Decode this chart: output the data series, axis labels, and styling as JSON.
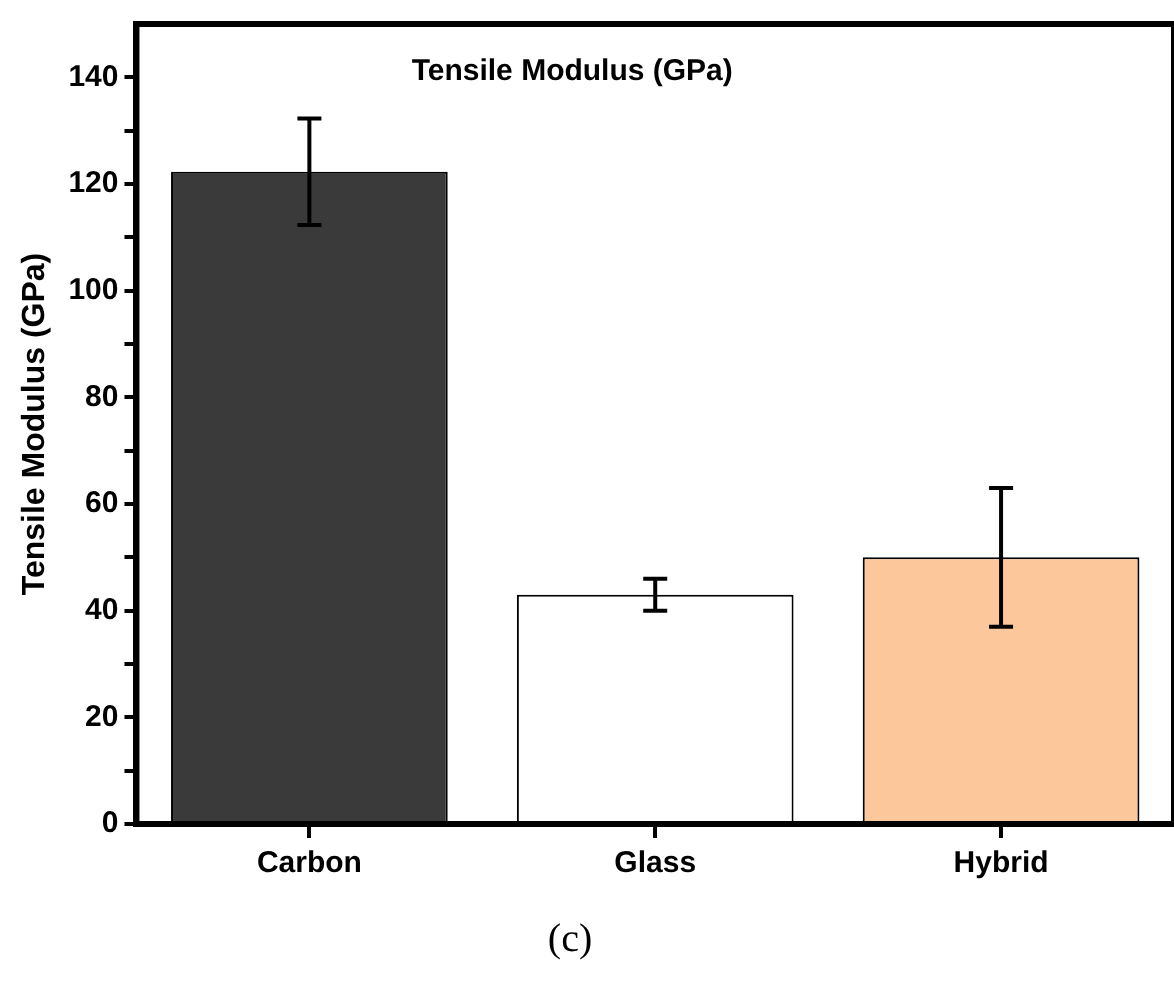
{
  "chart_data": {
    "type": "bar",
    "title": "Tensile Modulus (GPa)",
    "ylabel": "Tensile Modulus (GPa)",
    "categories": [
      "Carbon",
      "Glass",
      "Hybrid"
    ],
    "values": [
      122.3,
      43,
      50
    ],
    "colors": [
      "#3a3a3a",
      "#ffffff",
      "#fcc89b"
    ],
    "errors": [
      10,
      3,
      13
    ],
    "ylim": [
      0,
      150
    ],
    "yticks": [
      0,
      {
        "value": 10,
        "label": null
      },
      20,
      {
        "value": 30,
        "label": null
      },
      40,
      {
        "value": 50,
        "label": null
      },
      60,
      {
        "value": 70,
        "label": null
      },
      80,
      {
        "value": 90,
        "label": null
      },
      100,
      {
        "value": 110,
        "label": null
      },
      120,
      {
        "value": 130,
        "label": null
      },
      140
    ],
    "annotations": [
      "(c)"
    ],
    "grid": false,
    "legend": false
  }
}
